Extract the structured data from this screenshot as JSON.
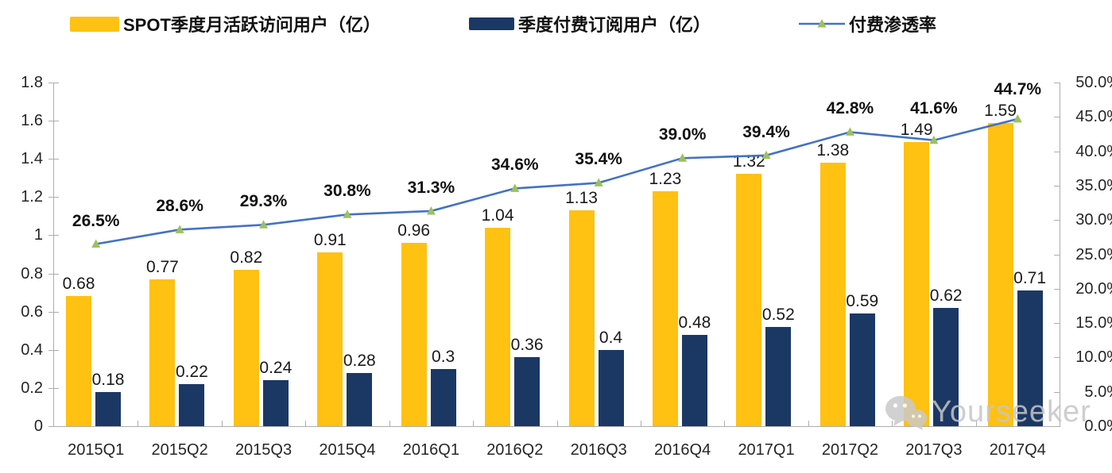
{
  "legend": [
    {
      "key": "mau",
      "label": "SPOT季度月活跃访问用户（亿）",
      "type": "bar",
      "color": "#FFC112"
    },
    {
      "key": "subscribers",
      "label": "季度付费订阅用户（亿）",
      "type": "bar",
      "color": "#1B3865"
    },
    {
      "key": "penetration",
      "label": "付费渗透率",
      "type": "line",
      "color": "#4472C4",
      "marker_color": "#9CC15C"
    }
  ],
  "watermark": {
    "text": "Yourseeker",
    "icon": "wechat-icon",
    "color": "#c6c6c6"
  },
  "chart_data": {
    "type": "bar",
    "subtype": "grouped-bars-with-line",
    "title": "",
    "categories": [
      "2015Q1",
      "2015Q2",
      "2015Q3",
      "2015Q4",
      "2016Q1",
      "2016Q2",
      "2016Q3",
      "2016Q4",
      "2017Q1",
      "2017Q2",
      "2017Q3",
      "2017Q4"
    ],
    "series": [
      {
        "name": "SPOT季度月活跃访问用户（亿）",
        "type": "bar",
        "axis": "left",
        "color": "#FFC112",
        "values": [
          0.68,
          0.77,
          0.82,
          0.91,
          0.96,
          1.04,
          1.13,
          1.23,
          1.32,
          1.38,
          1.49,
          1.59
        ],
        "labels": [
          "0.68",
          "0.77",
          "0.82",
          "0.91",
          "0.96",
          "1.04",
          "1.13",
          "1.23",
          "1.32",
          "1.38",
          "1.49",
          "1.59"
        ]
      },
      {
        "name": "季度付费订阅用户（亿）",
        "type": "bar",
        "axis": "left",
        "color": "#1B3865",
        "values": [
          0.18,
          0.22,
          0.24,
          0.28,
          0.3,
          0.36,
          0.4,
          0.48,
          0.52,
          0.59,
          0.62,
          0.71
        ],
        "labels": [
          "0.18",
          "0.22",
          "0.24",
          "0.28",
          "0.3",
          "0.36",
          "0.4",
          "0.48",
          "0.52",
          "0.59",
          "0.62",
          "0.71"
        ]
      },
      {
        "name": "付费渗透率",
        "type": "line",
        "axis": "right",
        "color": "#4472C4",
        "marker": "triangle",
        "marker_color": "#9CC15C",
        "values": [
          26.5,
          28.6,
          29.3,
          30.8,
          31.3,
          34.6,
          35.4,
          39.0,
          39.4,
          42.8,
          41.6,
          44.7
        ],
        "labels": [
          "26.5%",
          "28.6%",
          "29.3%",
          "30.8%",
          "31.3%",
          "34.6%",
          "35.4%",
          "39.0%",
          "39.4%",
          "42.8%",
          "41.6%",
          "44.7%"
        ]
      }
    ],
    "left_axis": {
      "min": 0,
      "max": 1.8,
      "step": 0.2,
      "tick_labels": [
        "1.8",
        "1.6",
        "1.4",
        "1.2",
        "1",
        "0.8",
        "0.6",
        "0.4",
        "0.2",
        "0"
      ]
    },
    "right_axis": {
      "min": 0,
      "max": 50,
      "step": 5,
      "unit": "%",
      "tick_labels": [
        "50.0%",
        "45.0%",
        "40.0%",
        "35.0%",
        "30.0%",
        "25.0%",
        "20.0%",
        "15.0%",
        "10.0%",
        "5.0%",
        "0.0%"
      ]
    },
    "grid": false,
    "legend_position": "top"
  }
}
